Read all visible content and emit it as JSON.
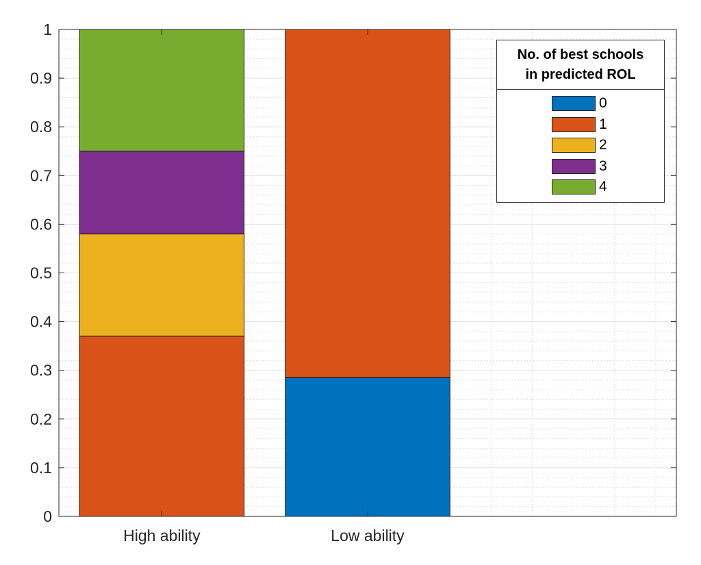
{
  "chart_data": {
    "type": "bar",
    "stacked": true,
    "categories": [
      "High ability",
      "Low ability"
    ],
    "series": [
      {
        "name": "0",
        "color": "#0072BD",
        "values": [
          0.0,
          0.285
        ]
      },
      {
        "name": "1",
        "color": "#D95319",
        "values": [
          0.37,
          0.715
        ]
      },
      {
        "name": "2",
        "color": "#EDB120",
        "values": [
          0.21,
          0.0
        ]
      },
      {
        "name": "3",
        "color": "#7E2F8E",
        "values": [
          0.17,
          0.0
        ]
      },
      {
        "name": "4",
        "color": "#77AC30",
        "values": [
          0.25,
          0.0
        ]
      }
    ],
    "ylim": [
      0,
      1
    ],
    "yticks": [
      "0",
      "0.1",
      "0.2",
      "0.3",
      "0.4",
      "0.5",
      "0.6",
      "0.7",
      "0.8",
      "0.9",
      "1"
    ],
    "xlabel": "",
    "ylabel": "",
    "grid": true,
    "minor_grid": true,
    "legend": {
      "title_lines": [
        "No. of best schools",
        "in predicted ROL"
      ],
      "position": "top-right"
    }
  }
}
